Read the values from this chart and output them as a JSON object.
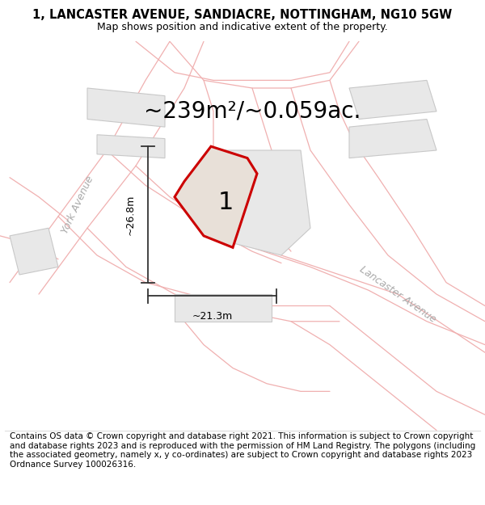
{
  "title": "1, LANCASTER AVENUE, SANDIACRE, NOTTINGHAM, NG10 5GW",
  "subtitle": "Map shows position and indicative extent of the property.",
  "footer": "Contains OS data © Crown copyright and database right 2021. This information is subject to Crown copyright and database rights 2023 and is reproduced with the permission of HM Land Registry. The polygons (including the associated geometry, namely x, y co-ordinates) are subject to Crown copyright and database rights 2023 Ordnance Survey 100026316.",
  "area_label": "~239m²/~0.059ac.",
  "width_label": "~21.3m",
  "height_label": "~26.8m",
  "plot_number": "1",
  "map_bg": "#ffffff",
  "road_line_color": "#f0b0b0",
  "building_fill": "#e8e8e8",
  "building_edge": "#c8c8c8",
  "plot_fill": "#e8e0d8",
  "plot_edge": "#cc0000",
  "dim_color": "#333333",
  "street_label_color": "#aaaaaa",
  "title_fontsize": 10.5,
  "subtitle_fontsize": 9.0,
  "footer_fontsize": 7.5,
  "area_fontsize": 20,
  "dim_fontsize": 9,
  "plot_label_fontsize": 22,
  "street_label_fontsize": 9
}
